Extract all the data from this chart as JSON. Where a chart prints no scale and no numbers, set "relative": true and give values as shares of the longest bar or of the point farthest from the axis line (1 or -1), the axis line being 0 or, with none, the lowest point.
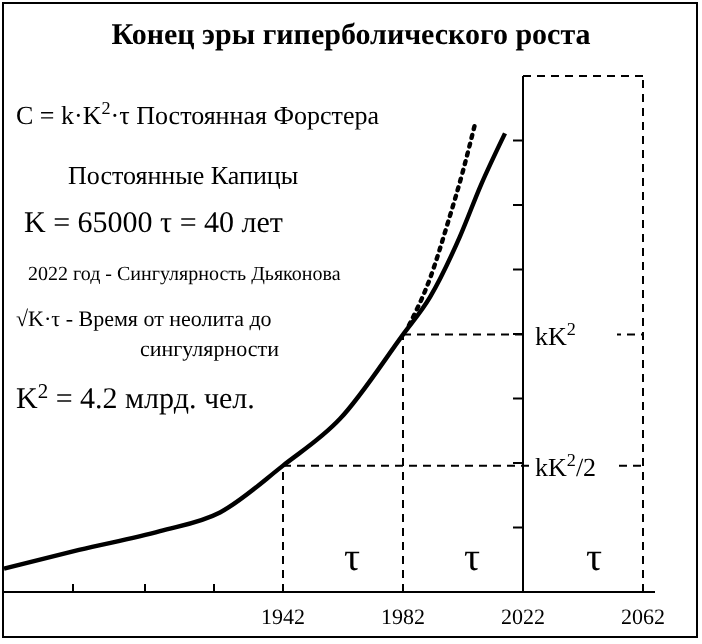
{
  "chart_data": {
    "type": "line",
    "title": "Конец эры гиперболического роста",
    "relative": true,
    "x": [
      1849,
      1874,
      1901,
      1921,
      1942,
      1961,
      1982,
      1991,
      2001,
      2008,
      2016
    ],
    "series": [
      {
        "color": "#000000",
        "line_style": "solid",
        "values": [
          0.05,
          0.09,
          0.13,
          0.17,
          0.27,
          0.37,
          0.55,
          0.63,
          0.76,
          0.87,
          0.98
        ]
      },
      {
        "color": "#000000",
        "line_style": "dotted",
        "x": [
          1984,
          1991,
          1997,
          2002,
          2006
        ],
        "values": [
          0.57,
          0.67,
          0.79,
          0.9,
          1
        ]
      }
    ],
    "xlim": [
      1849,
      2066
    ],
    "xticks": [
      {
        "value": 1872,
        "label": null
      },
      {
        "value": 1896,
        "label": null
      },
      {
        "value": 1919,
        "label": null
      },
      1942,
      1982,
      2022,
      2062
    ],
    "ref_lines": [
      {
        "axis": "x",
        "value": 1942,
        "line_style": "dashed"
      },
      {
        "axis": "x",
        "value": 1982,
        "line_style": "dashed"
      },
      {
        "axis": "x",
        "value": 2022,
        "line_style": "solid"
      },
      {
        "axis": "x",
        "value": 2062,
        "line_style": "dashed"
      },
      {
        "axis": "y",
        "value": 0.27,
        "line_style": "dashed",
        "label": "kK$^{2}$/2"
      },
      {
        "axis": "y",
        "value": 0.55,
        "line_style": "dashed",
        "label": "kK$^{2}$"
      }
    ],
    "annotations": [
      "C = k·K$^{2}$·τ Постоянная Форстера",
      "Постоянные Капицы",
      "K = 65000   τ = 40 лет",
      "2022 год - Сингулярность Дьяконова",
      "√K·τ - Время от неолита до\nсингулярности",
      "K$^{2}$ = 4.2 млрд. чел.",
      "τ",
      "τ",
      "τ"
    ]
  }
}
